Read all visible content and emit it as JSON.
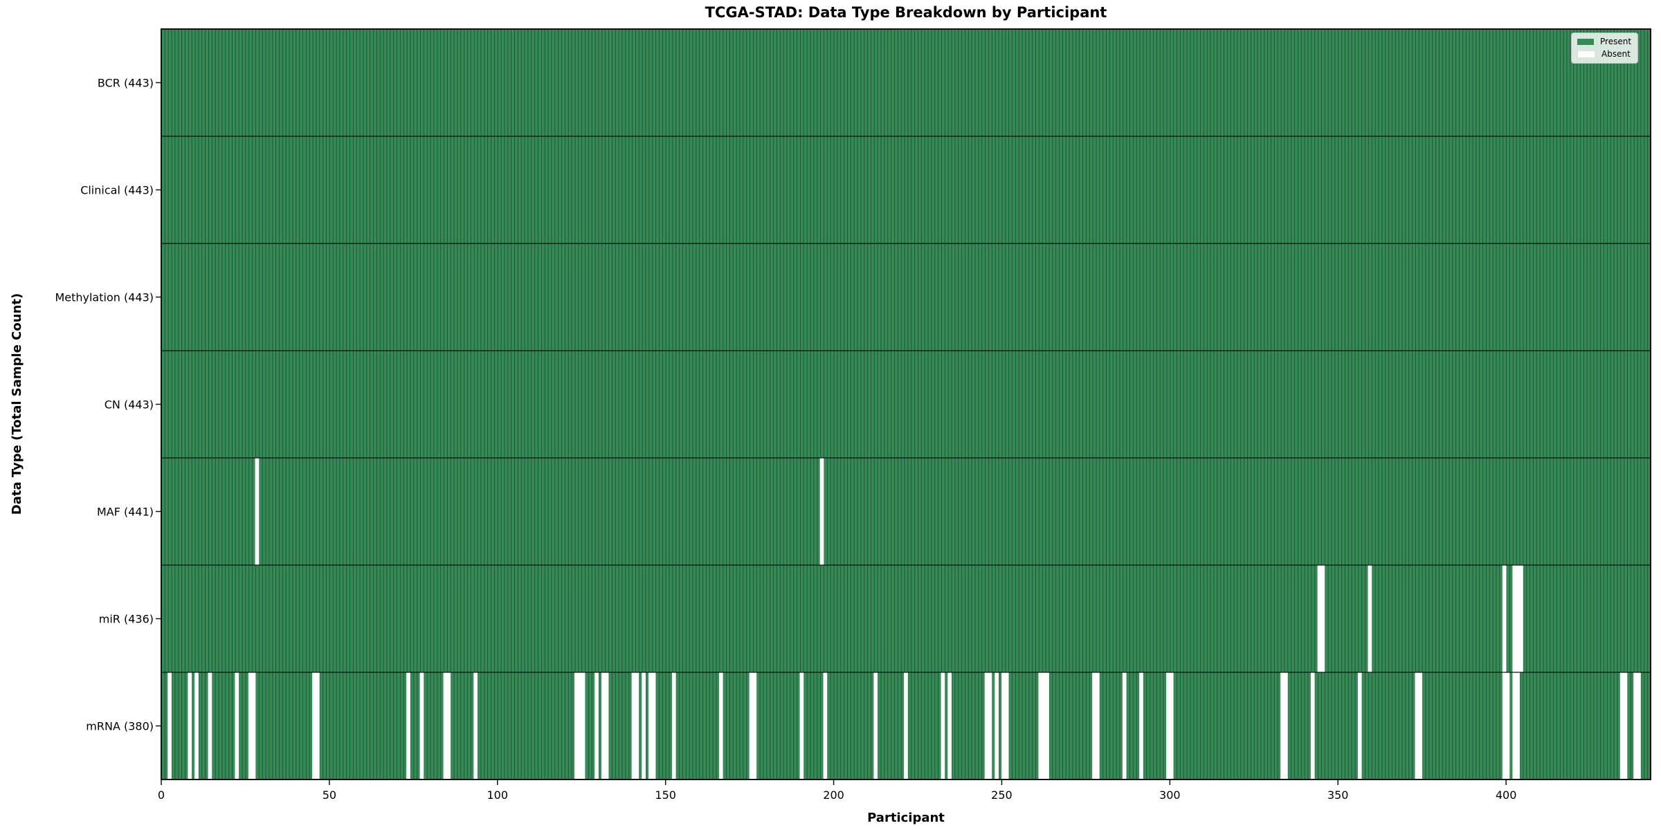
{
  "title": "TCGA-STAD: Data Type Breakdown by Participant",
  "legend": {
    "present_label": "Present",
    "absent_label": "Absent"
  },
  "colors": {
    "present": "#358a56",
    "absent": "#ffffff",
    "bar_edge": "#1d5233",
    "separator": "#111111",
    "border": "#111111"
  },
  "chart_data": {
    "type": "heatmap",
    "title": "TCGA-STAD: Data Type Breakdown by Participant",
    "xlabel": "Participant",
    "ylabel": "Data Type (Total Sample Count)",
    "n_participants": 443,
    "x_ticks": [
      0,
      50,
      100,
      150,
      200,
      250,
      300,
      350,
      400
    ],
    "xlim": [
      0,
      443
    ],
    "grid": false,
    "legend_position": "upper right",
    "legend_entries": [
      {
        "label": "Present",
        "color": "#358a56"
      },
      {
        "label": "Absent",
        "color": "#ffffff"
      }
    ],
    "rows": [
      {
        "data_type": "BCR",
        "count": 443,
        "label": "BCR (443)",
        "absent_participants": []
      },
      {
        "data_type": "Clinical",
        "count": 443,
        "label": "Clinical (443)",
        "absent_participants": []
      },
      {
        "data_type": "Methylation",
        "count": 443,
        "label": "Methylation (443)",
        "absent_participants": []
      },
      {
        "data_type": "CN",
        "count": 443,
        "label": "CN (443)",
        "absent_participants": []
      },
      {
        "data_type": "MAF",
        "count": 441,
        "label": "MAF (441)",
        "absent_participants": [
          28,
          196
        ]
      },
      {
        "data_type": "miR",
        "count": 436,
        "label": "miR (436)",
        "absent_participants": [
          344,
          345,
          359,
          399,
          402,
          403,
          404
        ]
      },
      {
        "data_type": "mRNA",
        "count": 380,
        "label": "mRNA (380)",
        "absent_participants": [
          2,
          8,
          10,
          14,
          22,
          26,
          27,
          45,
          46,
          73,
          77,
          84,
          85,
          93,
          123,
          124,
          125,
          129,
          131,
          132,
          140,
          141,
          143,
          145,
          146,
          152,
          166,
          175,
          176,
          190,
          197,
          212,
          221,
          232,
          234,
          245,
          246,
          248,
          250,
          251,
          261,
          262,
          263,
          277,
          278,
          286,
          291,
          299,
          300,
          333,
          334,
          342,
          356,
          373,
          374,
          399,
          400,
          402,
          403,
          434,
          435,
          438,
          439
        ]
      }
    ]
  }
}
